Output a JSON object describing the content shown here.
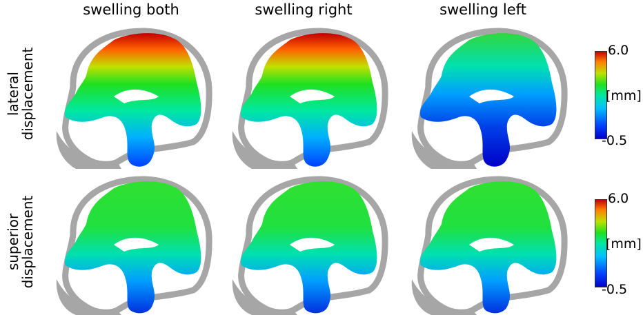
{
  "columns": [
    "swelling both",
    "swelling right",
    "swelling left"
  ],
  "rows": [
    {
      "line1": "lateral",
      "line2": "displacement"
    },
    {
      "line1": "superior",
      "line2": "displacement"
    }
  ],
  "colorbars": [
    {
      "max": "6.0",
      "unit": "[mm]",
      "min": "-0.5"
    },
    {
      "max": "6.0",
      "unit": "[mm]",
      "min": "-0.5"
    }
  ],
  "colormap": [
    "#0000c8",
    "#0040ff",
    "#00c0ff",
    "#00e8a0",
    "#20e020",
    "#c0e000",
    "#ff8000",
    "#c00000"
  ],
  "skull_color": "#a6a6a6"
}
